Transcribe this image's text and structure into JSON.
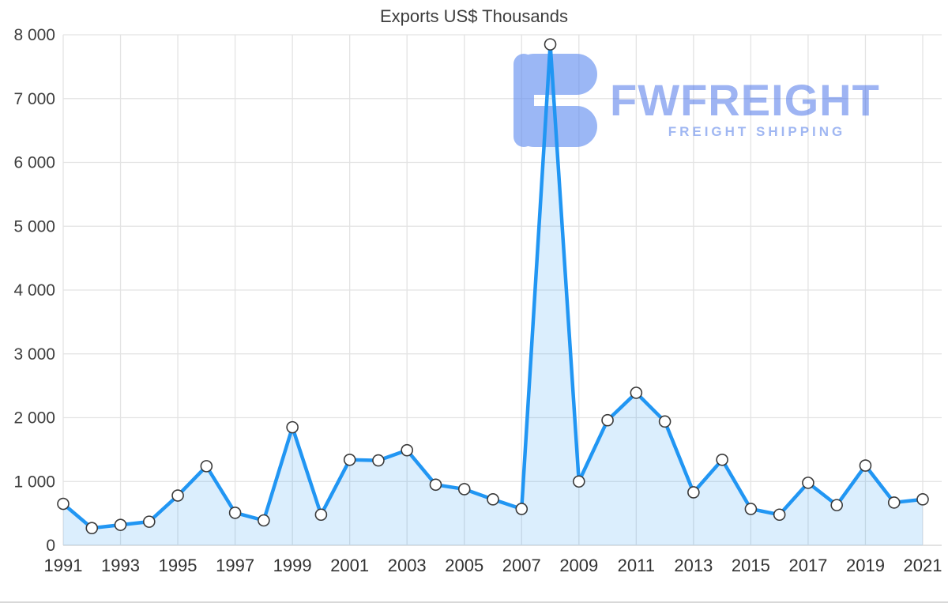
{
  "page": {
    "title": "Exports US$ Thousands"
  },
  "watermark": {
    "brand": "FWFREIGHT",
    "tagline": "FREIGHT SHIPPING",
    "brand_color": "#3f6be8",
    "brand_opacity": 0.5,
    "tagline_color": "#6e92ec",
    "tagline_opacity": 0.65,
    "icon_color": "#5f8cef",
    "icon_opacity": 0.62
  },
  "chart_data": {
    "type": "area",
    "title": "Exports US$ Thousands",
    "series_name": "Exports US$ Thousands",
    "x": [
      1991,
      1992,
      1993,
      1994,
      1995,
      1996,
      1997,
      1998,
      1999,
      2000,
      2001,
      2002,
      2003,
      2004,
      2005,
      2006,
      2007,
      2008,
      2009,
      2010,
      2011,
      2012,
      2013,
      2014,
      2015,
      2016,
      2017,
      2018,
      2019,
      2020,
      2021
    ],
    "values": [
      650,
      270,
      320,
      370,
      780,
      1240,
      510,
      390,
      1850,
      480,
      1340,
      1330,
      1490,
      950,
      880,
      720,
      570,
      7850,
      1000,
      1960,
      2390,
      1940,
      830,
      1340,
      570,
      480,
      980,
      630,
      1250,
      670,
      720
    ],
    "xlabel": "",
    "ylabel": "",
    "ylim": [
      0,
      8000
    ],
    "y_ticks": [
      0,
      1000,
      2000,
      3000,
      4000,
      5000,
      6000,
      7000,
      8000
    ],
    "y_tick_labels": [
      "0",
      "1 000",
      "2 000",
      "3 000",
      "4 000",
      "5 000",
      "6 000",
      "7 000",
      "8 000"
    ],
    "x_tick_labels": [
      "1991",
      "1993",
      "1995",
      "1997",
      "1999",
      "2001",
      "2003",
      "2005",
      "2007",
      "2009",
      "2011",
      "2013",
      "2015",
      "2017",
      "2019",
      "2021"
    ],
    "grid": true,
    "legend": "none",
    "colors": {
      "line": "#2196f3",
      "fill": "rgba(33,150,243,0.16)",
      "grid": "#e3e3e3",
      "baseline": "#d0d0d0",
      "axis_text": "#3d3d3d",
      "marker_fill": "#ffffff",
      "marker_stroke": "#3a3a3a"
    }
  }
}
